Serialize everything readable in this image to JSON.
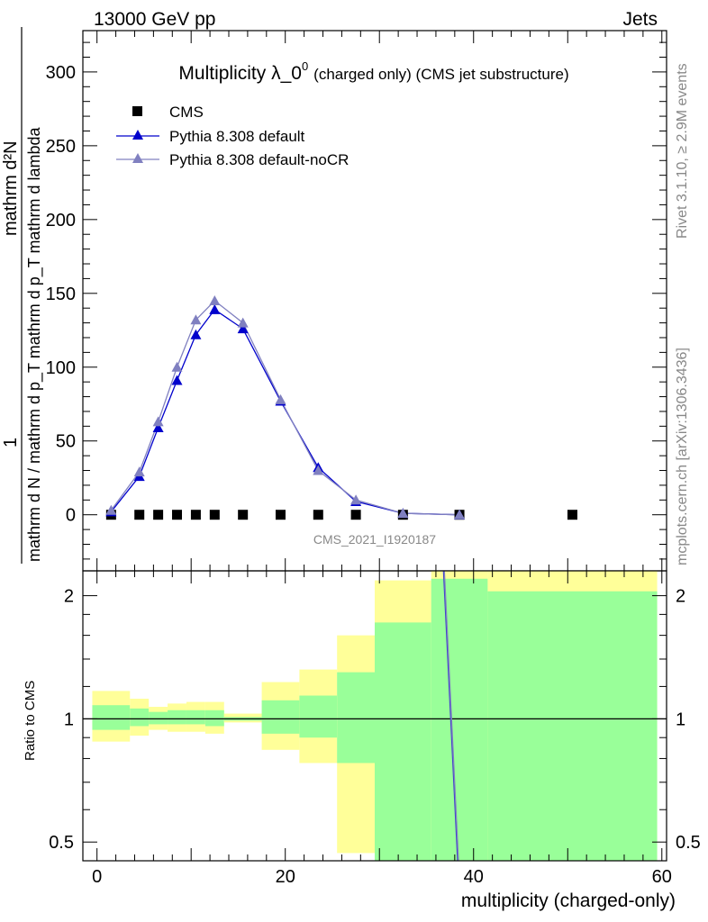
{
  "header": {
    "left_label": "13000 GeV pp",
    "right_label": "Jets"
  },
  "side_labels": {
    "rivet": "Rivet 3.1.10, ≥ 2.9M events",
    "mcplots": "mcplots.cern.ch [arXiv:1306.3436]"
  },
  "chart_data": [
    {
      "type": "line",
      "title": "Multiplicity λ_0",
      "title_sup": "0",
      "subtitle": "(charged only) (CMS jet substructure)",
      "watermark": "CMS_2021_I1920187",
      "ylabel_numerator": "1",
      "ylabel_numerator_right": "mathrm d²N",
      "ylabel_denominator": "mathrm d N / mathrm d p_T mathrm d p_T mathrm d lambda",
      "ylim": [
        -38,
        328
      ],
      "yticks": [
        "0",
        "50",
        "100",
        "150",
        "200",
        "250",
        "300"
      ],
      "legend_position": "top-left",
      "series": [
        {
          "name": "CMS",
          "style": "markers",
          "marker": "square",
          "color": "#000000",
          "x": [
            1.5,
            4.5,
            6.5,
            8.5,
            10.5,
            12.5,
            15.5,
            19.5,
            23.5,
            27.5,
            32.5,
            38.5,
            50.5
          ],
          "y": [
            0,
            0,
            0,
            0,
            0,
            0,
            0,
            0,
            0,
            0,
            0,
            0,
            0
          ]
        },
        {
          "name": "Pythia 8.308 default",
          "style": "line+markers",
          "marker": "triangle",
          "color": "#0000cc",
          "x": [
            1.5,
            4.5,
            6.5,
            8.5,
            10.5,
            12.5,
            15.5,
            19.5,
            23.5,
            27.5,
            32.5,
            38.5
          ],
          "y": [
            2,
            26,
            59,
            91,
            122,
            139,
            126,
            77,
            32,
            9,
            1,
            0
          ]
        },
        {
          "name": "Pythia 8.308 default-noCR",
          "style": "line+markers",
          "marker": "triangle",
          "color": "#8080c0",
          "x": [
            1.5,
            4.5,
            6.5,
            8.5,
            10.5,
            12.5,
            15.5,
            19.5,
            23.5,
            27.5,
            32.5,
            38.5
          ],
          "y": [
            3,
            29,
            63,
            100,
            132,
            145,
            130,
            78,
            30,
            10,
            1,
            0
          ]
        }
      ]
    },
    {
      "type": "area",
      "ylabel": "Ratio to CMS",
      "xlabel": "multiplicity (charged-only)",
      "xlim": [
        -1.5,
        60.5
      ],
      "xticks": [
        "0",
        "20",
        "40",
        "60"
      ],
      "ylim": [
        0.45,
        2.3
      ],
      "yscale": "log",
      "yticks": [
        "0.5",
        "1",
        "2"
      ],
      "bands": {
        "outer_color": "#ffff99",
        "inner_color": "#99ff99",
        "edges": [
          -0.5,
          3.5,
          5.5,
          7.5,
          9.5,
          11.5,
          13.5,
          17.5,
          21.5,
          25.5,
          29.5,
          35.5,
          41.5,
          59.5
        ],
        "outer_low": [
          0.88,
          0.91,
          0.94,
          0.93,
          0.93,
          0.92,
          0.98,
          0.84,
          0.78,
          0.47,
          0.4,
          0.4,
          0.4
        ],
        "outer_high": [
          1.17,
          1.12,
          1.07,
          1.09,
          1.1,
          1.1,
          1.03,
          1.23,
          1.32,
          1.6,
          2.18,
          2.5,
          2.5
        ],
        "inner_low": [
          0.94,
          0.96,
          0.97,
          0.97,
          0.97,
          0.96,
          0.99,
          0.92,
          0.9,
          0.78,
          0.4,
          0.4,
          0.4
        ],
        "inner_high": [
          1.08,
          1.06,
          1.04,
          1.05,
          1.05,
          1.05,
          1.01,
          1.11,
          1.14,
          1.3,
          1.72,
          2.2,
          2.05
        ]
      },
      "reference_line": 1,
      "series": [
        {
          "name": "Pythia 8.308 default",
          "color": "#4444cc",
          "x": [
            36.8,
            38.3
          ],
          "y": [
            2.6,
            0.4
          ]
        },
        {
          "name": "Pythia 8.308 default-noCR",
          "color": "#8080c0",
          "x": [
            36.9,
            38.4
          ],
          "y": [
            2.6,
            0.4
          ]
        }
      ]
    }
  ]
}
